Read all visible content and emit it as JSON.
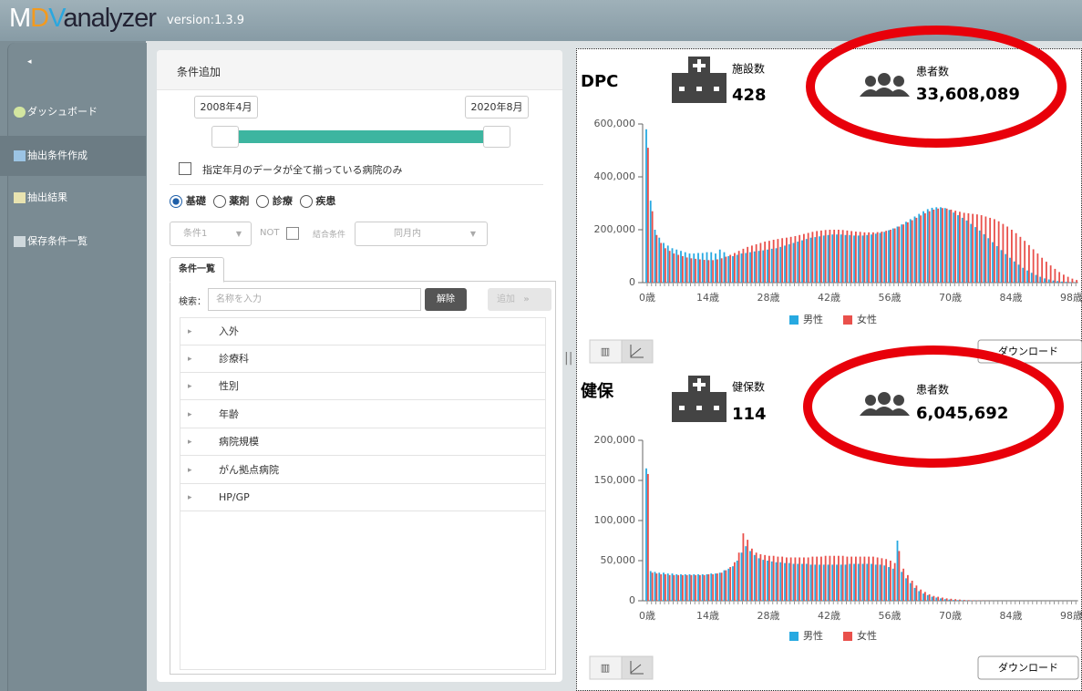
{
  "header": {
    "logo_parts": [
      "M",
      "D",
      "V",
      "analyzer"
    ],
    "version": "version:1.3.9"
  },
  "sidebar": {
    "items": [
      "ダッシュボード",
      "抽出条件作成",
      "抽出結果",
      "保存条件一覧"
    ]
  },
  "conditions": {
    "title": "条件追加",
    "range_start": "2008年4月",
    "range_end": "2020年8月",
    "checkbox_label": "指定年月のデータが全て揃っている病院のみ",
    "radios": [
      "基礎",
      "薬剤",
      "診療",
      "疾患"
    ],
    "condition_select": "条件1",
    "not_label": "NOT",
    "combine_label": "結合条件",
    "combine_select": "同月内",
    "tab": "条件一覧",
    "search_label": "検索：",
    "search_placeholder": "名称を入力",
    "clear_button": "解除",
    "add_button": "追加",
    "tree": [
      "入外",
      "診療科",
      "性別",
      "年齢",
      "病院規模",
      "がん拠点病院",
      "HP/GP"
    ]
  },
  "panels": [
    {
      "name": "DPC",
      "count_label": "施設数",
      "count": "428",
      "patient_label": "患者数",
      "patient_count": "33,608,089",
      "download": "ダウンロード"
    },
    {
      "name": "健保",
      "count_label": "健保数",
      "count": "114",
      "patient_label": "患者数",
      "patient_count": "6,045,692",
      "download": "ダウンロード"
    }
  ],
  "chart_data": [
    {
      "type": "bar",
      "legend": "bottom",
      "grid": false,
      "categories": [
        "0歳",
        null,
        null,
        null,
        null,
        null,
        null,
        null,
        null,
        null,
        null,
        null,
        null,
        null,
        "14歳",
        null,
        null,
        null,
        null,
        null,
        null,
        null,
        null,
        null,
        null,
        null,
        null,
        null,
        "28歳",
        null,
        null,
        null,
        null,
        null,
        null,
        null,
        null,
        null,
        null,
        null,
        null,
        null,
        "42歳",
        null,
        null,
        null,
        null,
        null,
        null,
        null,
        null,
        null,
        null,
        null,
        null,
        null,
        "56歳",
        null,
        null,
        null,
        null,
        null,
        null,
        null,
        null,
        null,
        null,
        null,
        null,
        null,
        "70歳",
        null,
        null,
        null,
        null,
        null,
        null,
        null,
        null,
        null,
        null,
        null,
        null,
        null,
        "84歳",
        null,
        null,
        null,
        null,
        null,
        null,
        null,
        null,
        null,
        null,
        null,
        null,
        null,
        "98歳",
        null
      ],
      "ylim": [
        0,
        600000
      ],
      "yticks": [
        0,
        {
          "value": 200000,
          "label": "200,000"
        },
        {
          "value": 400000,
          "label": "400,000"
        },
        {
          "value": 600000,
          "label": "600,000"
        }
      ],
      "series": [
        {
          "name": "男性",
          "color": "#27a9e1",
          "values": [
            580000,
            310000,
            200000,
            170000,
            150000,
            140000,
            130000,
            125000,
            120000,
            115000,
            110000,
            110000,
            112000,
            112000,
            115000,
            115000,
            110000,
            125000,
            115000,
            100000,
            100000,
            105000,
            110000,
            112000,
            115000,
            118000,
            120000,
            122000,
            125000,
            128000,
            130000,
            135000,
            140000,
            145000,
            150000,
            155000,
            160000,
            165000,
            170000,
            172000,
            175000,
            178000,
            180000,
            182000,
            182000,
            182000,
            180000,
            180000,
            178000,
            178000,
            178000,
            180000,
            182000,
            185000,
            188000,
            192000,
            198000,
            205000,
            212000,
            220000,
            230000,
            240000,
            250000,
            260000,
            270000,
            278000,
            283000,
            285000,
            285000,
            282000,
            275000,
            265000,
            255000,
            245000,
            235000,
            222000,
            210000,
            197000,
            183000,
            168000,
            153000,
            138000,
            123000,
            108000,
            94000,
            80000,
            68000,
            56000,
            46000,
            37000,
            29000,
            22000,
            16000,
            12000,
            8000,
            6000,
            4000,
            3000,
            2000,
            1000
          ]
        },
        {
          "name": "女性",
          "color": "#e9504b",
          "values": [
            510000,
            270000,
            180000,
            150000,
            130000,
            120000,
            110000,
            105000,
            100000,
            95000,
            92000,
            90000,
            88000,
            86000,
            85000,
            85000,
            88000,
            92000,
            98000,
            105000,
            112000,
            120000,
            128000,
            135000,
            140000,
            145000,
            150000,
            155000,
            158000,
            162000,
            165000,
            168000,
            170000,
            173000,
            176000,
            180000,
            184000,
            188000,
            192000,
            195000,
            197000,
            199000,
            200000,
            200000,
            200000,
            199000,
            197000,
            195000,
            193000,
            192000,
            190000,
            190000,
            190000,
            191000,
            193000,
            196000,
            200000,
            205000,
            212000,
            220000,
            228000,
            236000,
            245000,
            254000,
            262000,
            270000,
            276000,
            280000,
            282000,
            280000,
            276000,
            272000,
            268000,
            264000,
            262000,
            260000,
            258000,
            255000,
            250000,
            245000,
            240000,
            232000,
            222000,
            212000,
            200000,
            187000,
            173000,
            158000,
            142000,
            126000,
            110000,
            94000,
            79000,
            65000,
            52000,
            40000,
            30000,
            22000,
            15000,
            10000
          ]
        }
      ]
    },
    {
      "type": "bar",
      "legend": "bottom",
      "grid": false,
      "categories": [
        "0歳",
        null,
        null,
        null,
        null,
        null,
        null,
        null,
        null,
        null,
        null,
        null,
        null,
        null,
        "14歳",
        null,
        null,
        null,
        null,
        null,
        null,
        null,
        null,
        null,
        null,
        null,
        null,
        null,
        "28歳",
        null,
        null,
        null,
        null,
        null,
        null,
        null,
        null,
        null,
        null,
        null,
        null,
        null,
        "42歳",
        null,
        null,
        null,
        null,
        null,
        null,
        null,
        null,
        null,
        null,
        null,
        null,
        null,
        "56歳",
        null,
        null,
        null,
        null,
        null,
        null,
        null,
        null,
        null,
        null,
        null,
        null,
        null,
        "70歳",
        null,
        null,
        null,
        null,
        null,
        null,
        null,
        null,
        null,
        null,
        null,
        null,
        null,
        "84歳",
        null,
        null,
        null,
        null,
        null,
        null,
        null,
        null,
        null,
        null,
        null,
        null,
        null,
        "98歳",
        null
      ],
      "ylim": [
        0,
        200000
      ],
      "yticks": [
        0,
        {
          "value": 50000,
          "label": "50,000"
        },
        {
          "value": 100000,
          "label": "100,000"
        },
        {
          "value": 150000,
          "label": "150,000"
        },
        {
          "value": 200000,
          "label": "200,000"
        }
      ],
      "series": [
        {
          "name": "男性",
          "color": "#27a9e1",
          "values": [
            165000,
            37000,
            36000,
            35000,
            35000,
            34000,
            34000,
            33000,
            33000,
            33000,
            33000,
            33000,
            33000,
            33000,
            33000,
            34000,
            34000,
            35000,
            38000,
            40000,
            43000,
            50000,
            60000,
            68000,
            62000,
            57000,
            53000,
            51000,
            50000,
            49000,
            48000,
            48000,
            47000,
            47000,
            46000,
            46000,
            46000,
            46000,
            45000,
            45000,
            45000,
            45000,
            45000,
            45000,
            45000,
            45000,
            45000,
            46000,
            46000,
            46000,
            46000,
            46000,
            46000,
            45000,
            45000,
            44000,
            42000,
            40000,
            75000,
            36000,
            28000,
            22000,
            16000,
            12000,
            9000,
            7000,
            5000,
            4000,
            3000,
            2000,
            1500,
            1000,
            800,
            600,
            400,
            300,
            200,
            100,
            0,
            0,
            0,
            0,
            0,
            0,
            0,
            0,
            0,
            0,
            0,
            0,
            0,
            0,
            0,
            0,
            0,
            0,
            0,
            0,
            0,
            0
          ]
        },
        {
          "name": "女性",
          "color": "#e9504b",
          "values": [
            158000,
            35000,
            34000,
            33000,
            33000,
            32000,
            32000,
            32000,
            32000,
            32000,
            32000,
            32000,
            32000,
            32000,
            33000,
            33000,
            34000,
            35000,
            38000,
            42000,
            48000,
            60000,
            84000,
            76000,
            65000,
            60000,
            58000,
            57000,
            56000,
            56000,
            55000,
            55000,
            54000,
            54000,
            54000,
            54000,
            54000,
            54000,
            55000,
            55000,
            55000,
            56000,
            56000,
            56000,
            56000,
            56000,
            55000,
            55000,
            55000,
            55000,
            55000,
            55000,
            55000,
            54000,
            53000,
            52000,
            50000,
            47000,
            62000,
            40000,
            32000,
            25000,
            19000,
            14000,
            11000,
            8000,
            6000,
            5000,
            4000,
            3000,
            2500,
            2000,
            1500,
            1000,
            800,
            600,
            400,
            300,
            200,
            100,
            0,
            0,
            0,
            0,
            0,
            0,
            0,
            0,
            0,
            0,
            0,
            0,
            0,
            0,
            0,
            0,
            0,
            0,
            0,
            0
          ]
        }
      ]
    }
  ]
}
